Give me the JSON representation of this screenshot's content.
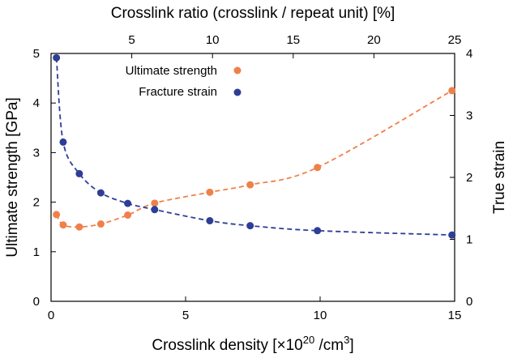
{
  "chart_data": {
    "type": "scatter",
    "top_axis": {
      "label": "Crosslink ratio (crosslink / repeat unit) [%]",
      "ticks": [
        5,
        10,
        15,
        20,
        25
      ]
    },
    "x_axis": {
      "label_main": "Crosslink density [×10",
      "label_exp1": "20",
      "label_mid": " /cm",
      "label_exp2": "3",
      "label_end": "]",
      "range": [
        0,
        15
      ],
      "ticks": [
        0,
        5,
        10,
        15
      ]
    },
    "y_left": {
      "label": "Ultimate strength [GPa]",
      "range": [
        0,
        5
      ],
      "ticks": [
        0,
        1,
        2,
        3,
        4,
        5
      ]
    },
    "y_right": {
      "label": "True strain",
      "range": [
        0,
        4
      ],
      "ticks": [
        0,
        1,
        2,
        3,
        4
      ]
    },
    "legend": {
      "position": "top-left",
      "entries": [
        "Ultimate strength",
        "Fracture strain"
      ]
    },
    "series": [
      {
        "name": "Ultimate strength",
        "axis": "left",
        "color": "#f0804a",
        "line": "dashed",
        "x": [
          0.2,
          0.45,
          1.05,
          1.85,
          2.85,
          3.85,
          5.9,
          7.4,
          9.9,
          14.9
        ],
        "y": [
          1.75,
          1.54,
          1.5,
          1.56,
          1.74,
          1.98,
          2.2,
          2.35,
          2.7,
          4.25
        ]
      },
      {
        "name": "Fracture strain",
        "axis": "right",
        "color": "#2e3e96",
        "line": "dashed",
        "x": [
          0.2,
          0.45,
          1.05,
          1.85,
          2.85,
          3.85,
          5.9,
          7.4,
          9.9,
          14.9
        ],
        "y": [
          3.93,
          2.57,
          2.06,
          1.75,
          1.58,
          1.48,
          1.3,
          1.22,
          1.14,
          1.07
        ]
      }
    ]
  }
}
